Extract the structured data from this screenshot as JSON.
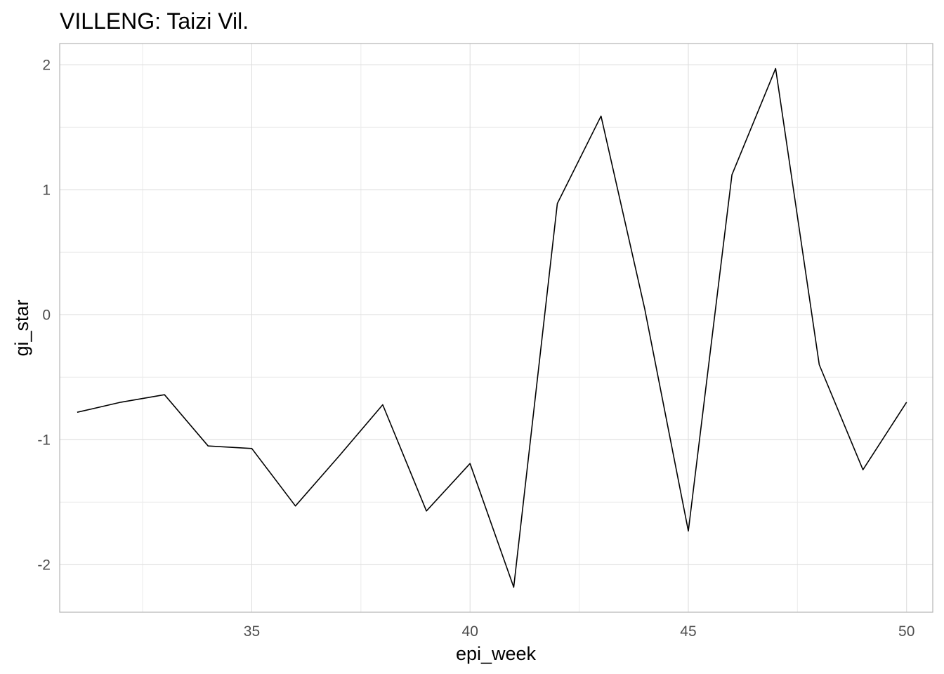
{
  "chart_data": {
    "type": "line",
    "title": "VILLENG: Taizi Vil.",
    "xlabel": "epi_week",
    "ylabel": "gi_star",
    "xlim": [
      30.6,
      50.6
    ],
    "ylim": [
      -2.38,
      2.17
    ],
    "x_ticks": [
      35,
      40,
      45,
      50
    ],
    "x_tick_labels": [
      "35",
      "40",
      "45",
      "50"
    ],
    "y_ticks": [
      -2,
      -1,
      0,
      1,
      2
    ],
    "y_tick_labels": [
      "-2",
      "-1",
      "0",
      "1",
      "2"
    ],
    "grid": true,
    "line_color": "#000000",
    "x": [
      31,
      32,
      33,
      34,
      35,
      36,
      37,
      38,
      39,
      40,
      41,
      42,
      43,
      44,
      45,
      46,
      47,
      48,
      49,
      50
    ],
    "values": [
      -0.78,
      -0.7,
      -0.64,
      -1.05,
      -1.07,
      -1.53,
      -1.13,
      -0.72,
      -1.57,
      -1.19,
      -2.18,
      0.89,
      1.59,
      0.05,
      -1.73,
      1.12,
      1.97,
      -0.4,
      -1.24,
      -0.7
    ]
  }
}
